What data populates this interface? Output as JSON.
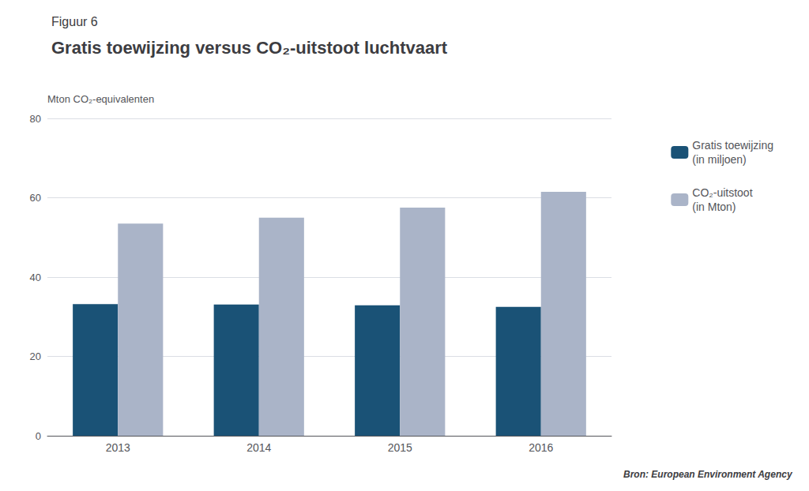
{
  "chart_data": {
    "type": "bar",
    "title": "Gratis toewijzing versus CO₂-uitstoot luchtvaart",
    "annotations": [
      "Figuur 6",
      "Bron: European Environment Agency"
    ],
    "y_label": "Mton CO₂-equivalenten",
    "categories": [
      "2013",
      "2014",
      "2015",
      "2016"
    ],
    "series": [
      {
        "name": "Gratis toewijzing\n(in miljoen)",
        "color": "#1a5276",
        "values": [
          33.2,
          33.1,
          32.9,
          32.5
        ]
      },
      {
        "name": "CO₂-uitstoot\n(in Mton)",
        "color": "#aab4c8",
        "values": [
          53.5,
          55.0,
          57.5,
          61.5
        ]
      }
    ],
    "ylim": [
      0,
      80
    ],
    "yticks": [
      0,
      20,
      40,
      60,
      80
    ],
    "grid": true,
    "legend": "right"
  }
}
